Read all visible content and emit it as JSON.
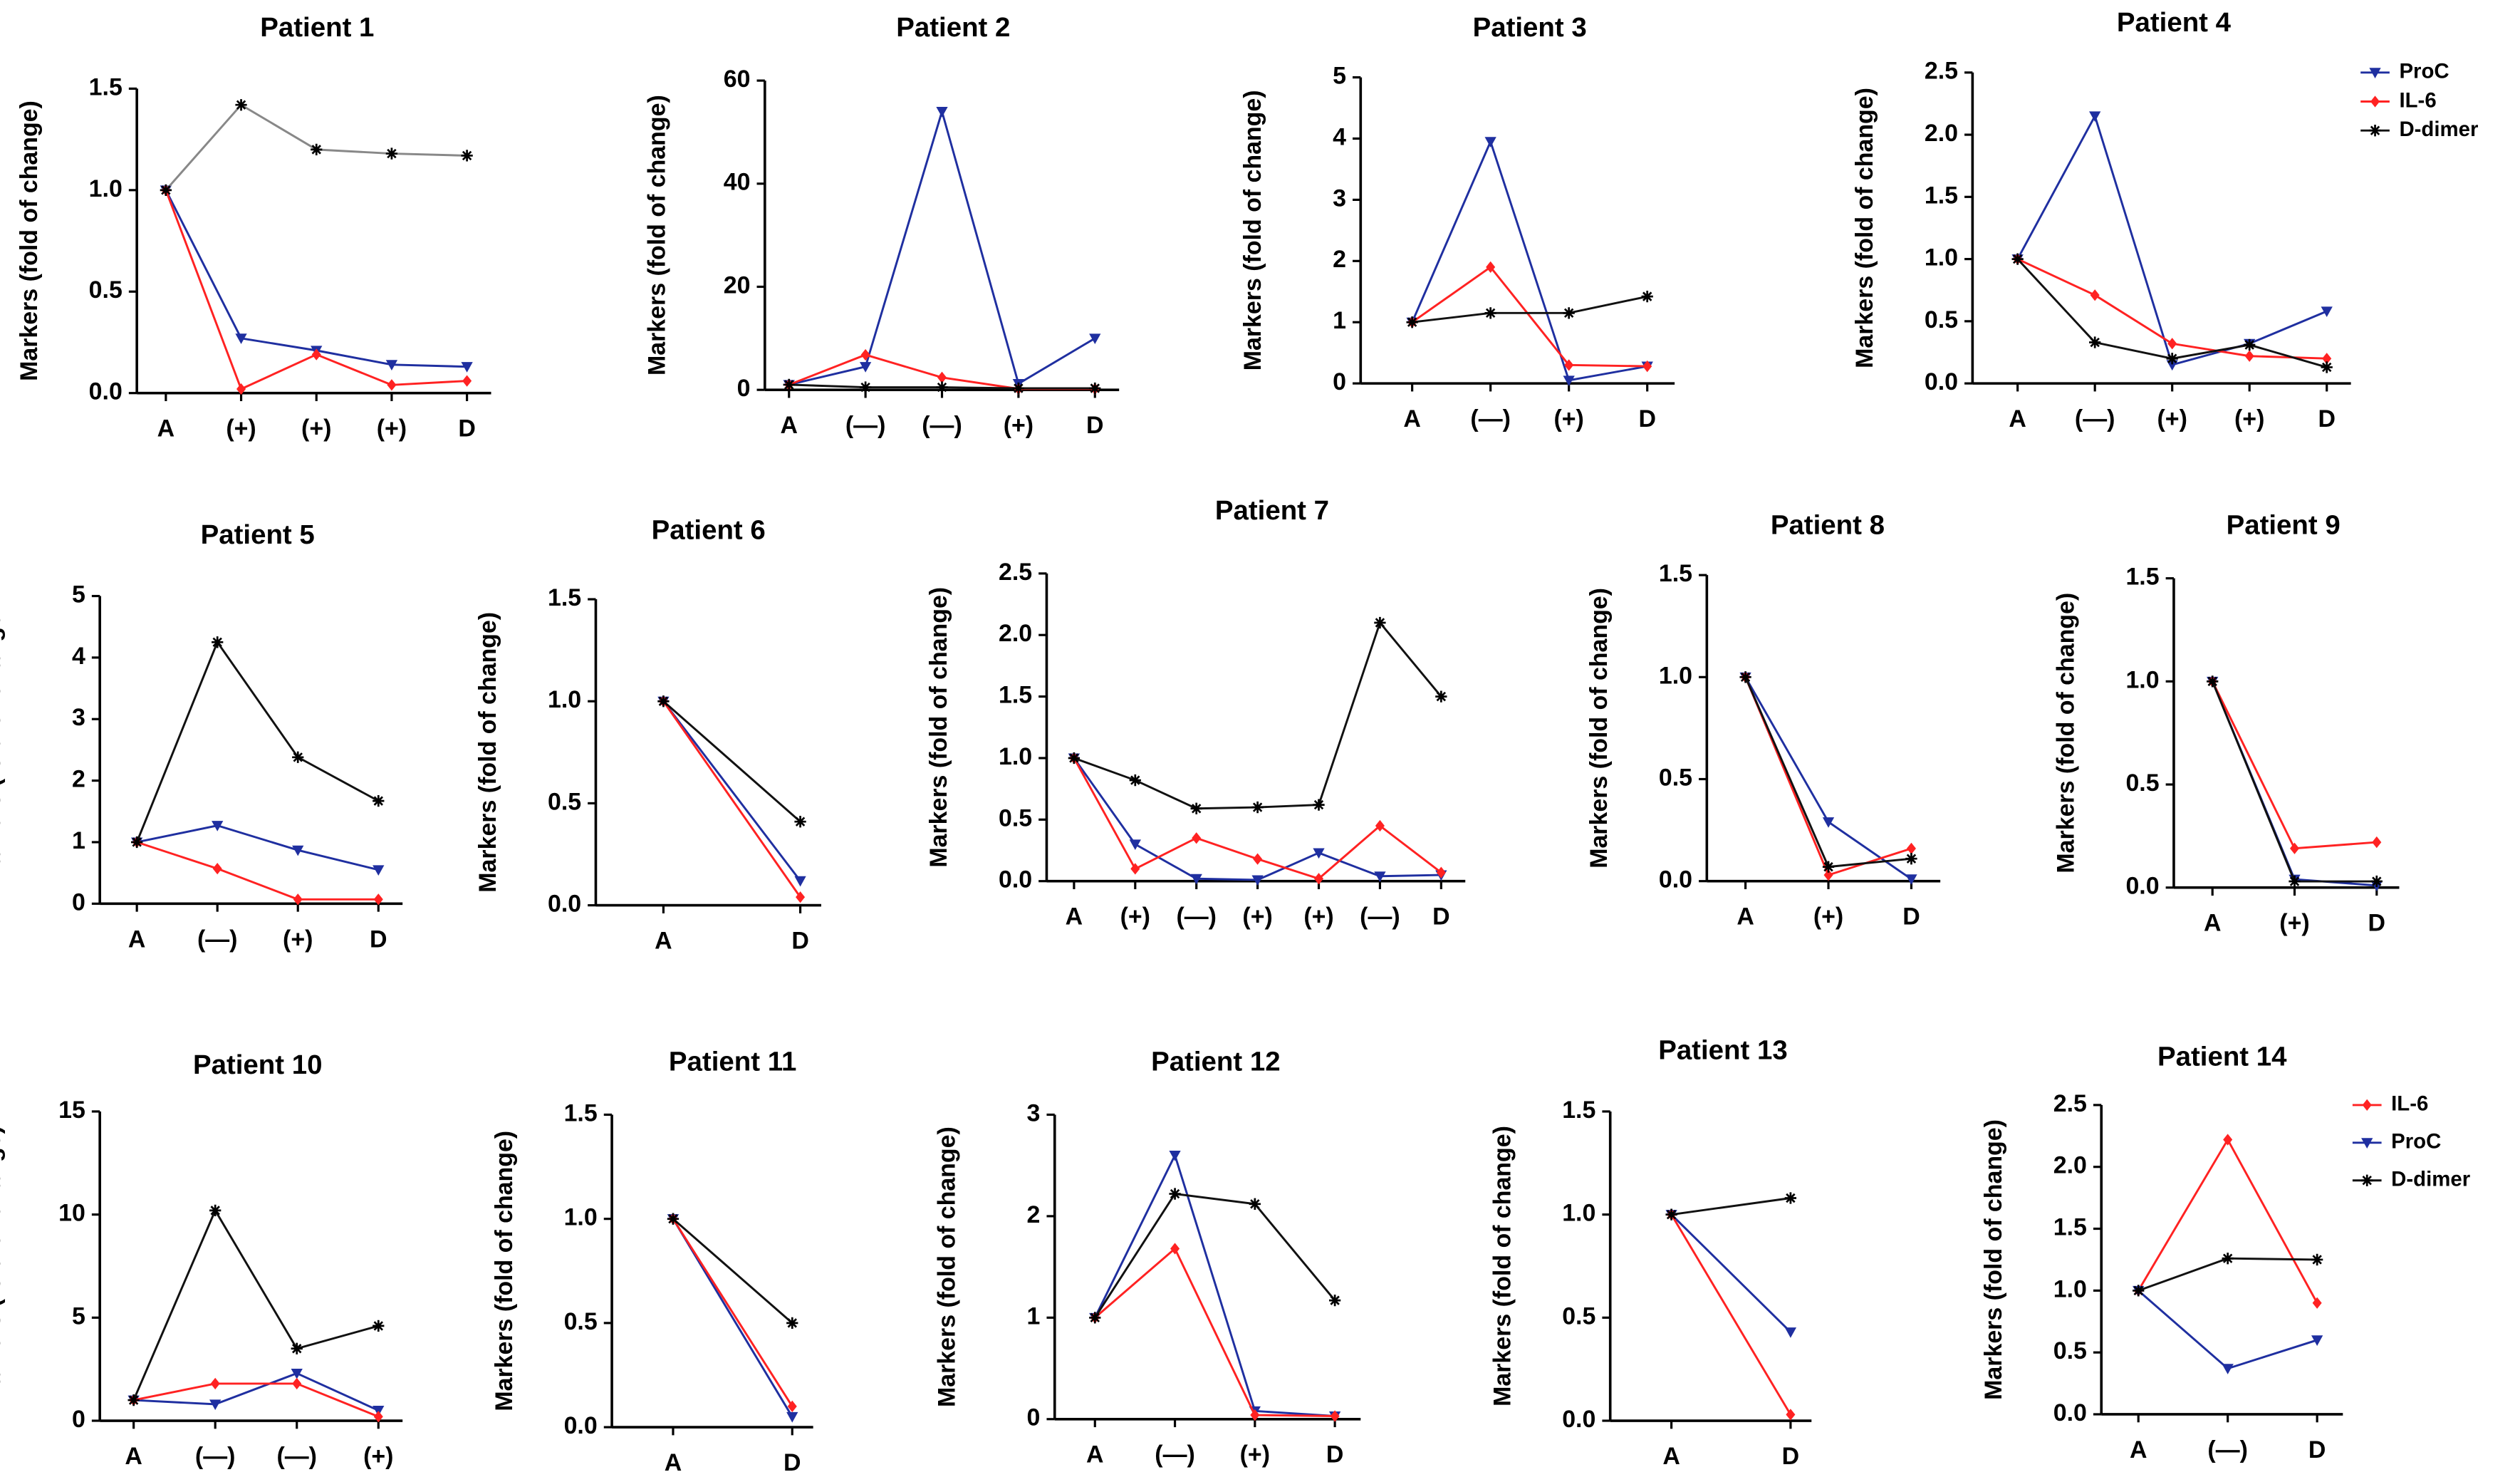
{
  "chart_data": [
    {
      "type": "line",
      "title": "Patient 1",
      "y_label": "Markers (fold of change)",
      "categories": [
        "A",
        "(+)",
        "(+)",
        "(+)",
        "D"
      ],
      "ylim": [
        0,
        1.5
      ],
      "yticks": [
        {
          "value": 0,
          "label": "0.0"
        },
        0.5,
        {
          "value": 1,
          "label": "1.0"
        },
        1.5
      ],
      "series": [
        {
          "name": "ProC",
          "color": "#1f2fa0",
          "marker": "triangle-down",
          "values": [
            1,
            0.27,
            0.21,
            0.14,
            0.13
          ]
        },
        {
          "name": "IL-6",
          "color": "#ff2222",
          "marker": "diamond",
          "values": [
            1,
            0.02,
            0.19,
            0.04,
            0.06
          ]
        },
        {
          "name": "D-dimer",
          "color": "#888888",
          "marker": "asterisk",
          "values": [
            1,
            1.42,
            1.2,
            1.18,
            1.17
          ]
        }
      ]
    },
    {
      "type": "line",
      "title": "Patient 2",
      "y_label": "Markers (fold of change)",
      "categories": [
        "A",
        "(—)",
        "(—)",
        "(+)",
        "D"
      ],
      "ylim": [
        0,
        60
      ],
      "yticks": [
        0,
        20,
        40,
        60
      ],
      "series": [
        {
          "name": "ProC",
          "color": "#1f2fa0",
          "marker": "triangle-down",
          "values": [
            1,
            4.5,
            54,
            1.2,
            10
          ]
        },
        {
          "name": "IL-6",
          "color": "#ff2222",
          "marker": "diamond",
          "values": [
            1,
            6.8,
            2.4,
            0.2,
            0.2
          ]
        },
        {
          "name": "D-dimer",
          "color": "#111111",
          "marker": "asterisk",
          "values": [
            1,
            0.5,
            0.5,
            0.3,
            0.3
          ]
        }
      ]
    },
    {
      "type": "line",
      "title": "Patient 3",
      "y_label": "Markers (fold of change)",
      "categories": [
        "A",
        "(—)",
        "(+)",
        "D"
      ],
      "ylim": [
        0,
        5
      ],
      "yticks": [
        0,
        1,
        2,
        3,
        4,
        5
      ],
      "series": [
        {
          "name": "ProC",
          "color": "#1f2fa0",
          "marker": "triangle-down",
          "values": [
            1,
            3.95,
            0.05,
            0.28
          ]
        },
        {
          "name": "IL-6",
          "color": "#ff2222",
          "marker": "diamond",
          "values": [
            1,
            1.9,
            0.3,
            0.28
          ]
        },
        {
          "name": "D-dimer",
          "color": "#111111",
          "marker": "asterisk",
          "values": [
            1,
            1.15,
            1.15,
            1.42
          ]
        }
      ]
    },
    {
      "type": "line",
      "title": "Patient 4",
      "y_label": "Markers (fold of change)",
      "categories": [
        "A",
        "(—)",
        "(+)",
        "(+)",
        "D"
      ],
      "ylim": [
        0,
        2.5
      ],
      "yticks": [
        {
          "value": 0,
          "label": "0.0"
        },
        0.5,
        {
          "value": 1,
          "label": "1.0"
        },
        1.5,
        {
          "value": 2,
          "label": "2.0"
        },
        2.5
      ],
      "legend": "right",
      "series": [
        {
          "name": "ProC",
          "color": "#1f2fa0",
          "marker": "triangle-down",
          "values": [
            1,
            2.15,
            0.15,
            0.32,
            0.58
          ]
        },
        {
          "name": "IL-6",
          "color": "#ff2222",
          "marker": "diamond",
          "values": [
            1,
            0.71,
            0.32,
            0.22,
            0.2
          ]
        },
        {
          "name": "D-dimer",
          "color": "#111111",
          "marker": "asterisk",
          "values": [
            1,
            0.33,
            0.2,
            0.31,
            0.13
          ]
        }
      ]
    },
    {
      "type": "line",
      "title": "Patient 5",
      "y_label": "Markers (fold of change",
      "categories": [
        "A",
        "(—)",
        "(+)",
        "D"
      ],
      "ylim": [
        0,
        5
      ],
      "yticks": [
        0,
        1,
        2,
        3,
        4,
        5
      ],
      "series": [
        {
          "name": "ProC",
          "color": "#1f2fa0",
          "marker": "triangle-down",
          "values": [
            1,
            1.27,
            0.87,
            0.55
          ]
        },
        {
          "name": "IL-6",
          "color": "#ff2222",
          "marker": "diamond",
          "values": [
            1,
            0.57,
            0.07,
            0.07
          ]
        },
        {
          "name": "D-dimer",
          "color": "#111111",
          "marker": "asterisk",
          "values": [
            1,
            4.25,
            2.38,
            1.67
          ]
        }
      ]
    },
    {
      "type": "line",
      "title": "Patient 6",
      "y_label": "Markers (fold of change)",
      "categories": [
        "A",
        "D"
      ],
      "ylim": [
        0,
        1.5
      ],
      "yticks": [
        {
          "value": 0,
          "label": "0.0"
        },
        0.5,
        {
          "value": 1,
          "label": "1.0"
        },
        1.5
      ],
      "series": [
        {
          "name": "ProC",
          "color": "#1f2fa0",
          "marker": "triangle-down",
          "values": [
            1,
            0.12
          ]
        },
        {
          "name": "IL-6",
          "color": "#ff2222",
          "marker": "diamond",
          "values": [
            1,
            0.04
          ]
        },
        {
          "name": "D-dimer",
          "color": "#111111",
          "marker": "asterisk",
          "values": [
            1,
            0.41
          ]
        }
      ]
    },
    {
      "type": "line",
      "title": "Patient 7",
      "y_label": "Markers (fold of change)",
      "categories": [
        "A",
        "(+)",
        "(—)",
        "(+)",
        "(+)",
        "(—)",
        "D"
      ],
      "ylim": [
        0,
        2.5
      ],
      "yticks": [
        {
          "value": 0,
          "label": "0.0"
        },
        0.5,
        {
          "value": 1,
          "label": "1.0"
        },
        1.5,
        {
          "value": 2,
          "label": "2.0"
        },
        2.5
      ],
      "series": [
        {
          "name": "ProC",
          "color": "#1f2fa0",
          "marker": "triangle-down",
          "values": [
            1,
            0.3,
            0.02,
            0.01,
            0.23,
            0.04,
            0.05
          ]
        },
        {
          "name": "IL-6",
          "color": "#ff2222",
          "marker": "diamond",
          "values": [
            1,
            0.1,
            0.35,
            0.18,
            0.02,
            0.45,
            0.07
          ]
        },
        {
          "name": "D-dimer",
          "color": "#111111",
          "marker": "asterisk",
          "values": [
            1,
            0.82,
            0.59,
            0.6,
            0.62,
            2.1,
            1.5
          ]
        }
      ]
    },
    {
      "type": "line",
      "title": "Patient 8",
      "y_label": "Markers (fold of change)",
      "categories": [
        "A",
        "(+)",
        "D"
      ],
      "ylim": [
        0,
        1.5
      ],
      "yticks": [
        {
          "value": 0,
          "label": "0.0"
        },
        0.5,
        {
          "value": 1,
          "label": "1.0"
        },
        1.5
      ],
      "series": [
        {
          "name": "ProC",
          "color": "#1f2fa0",
          "marker": "triangle-down",
          "values": [
            1,
            0.29,
            0.01
          ]
        },
        {
          "name": "IL-6",
          "color": "#ff2222",
          "marker": "diamond",
          "values": [
            1,
            0.03,
            0.16
          ]
        },
        {
          "name": "D-dimer",
          "color": "#111111",
          "marker": "asterisk",
          "values": [
            1,
            0.07,
            0.11
          ]
        }
      ]
    },
    {
      "type": "line",
      "title": "Patient 9",
      "y_label": "Markers (fold of change)",
      "categories": [
        "A",
        "(+)",
        "D"
      ],
      "ylim": [
        0,
        1.5
      ],
      "yticks": [
        {
          "value": 0,
          "label": "0.0"
        },
        0.5,
        {
          "value": 1,
          "label": "1.0"
        },
        1.5
      ],
      "series": [
        {
          "name": "ProC",
          "color": "#1f2fa0",
          "marker": "triangle-down",
          "values": [
            1,
            0.04,
            0.01
          ]
        },
        {
          "name": "IL-6",
          "color": "#ff2222",
          "marker": "diamond",
          "values": [
            1,
            0.19,
            0.22
          ]
        },
        {
          "name": "D-dimer",
          "color": "#111111",
          "marker": "asterisk",
          "values": [
            1,
            0.03,
            0.03
          ]
        }
      ]
    },
    {
      "type": "line",
      "title": "Patient 10",
      "y_label": "Markers (fold of change)",
      "categories": [
        "A",
        "(—)",
        "(—)",
        "(+)"
      ],
      "ylim": [
        0,
        15
      ],
      "yticks": [
        0,
        5,
        10,
        15
      ],
      "series": [
        {
          "name": "ProC",
          "color": "#1f2fa0",
          "marker": "triangle-down",
          "values": [
            1,
            0.8,
            2.3,
            0.5
          ]
        },
        {
          "name": "IL-6",
          "color": "#ff2222",
          "marker": "diamond",
          "values": [
            1,
            1.8,
            1.8,
            0.2
          ]
        },
        {
          "name": "D-dimer",
          "color": "#111111",
          "marker": "asterisk",
          "values": [
            1,
            10.2,
            3.5,
            4.6
          ]
        }
      ]
    },
    {
      "type": "line",
      "title": "Patient 11",
      "y_label": "Markers (fold of change)",
      "categories": [
        "A",
        "D"
      ],
      "ylim": [
        0,
        1.5
      ],
      "yticks": [
        {
          "value": 0,
          "label": "0.0"
        },
        0.5,
        {
          "value": 1,
          "label": "1.0"
        },
        1.5
      ],
      "series": [
        {
          "name": "ProC",
          "color": "#1f2fa0",
          "marker": "triangle-down",
          "values": [
            1,
            0.05
          ]
        },
        {
          "name": "IL-6",
          "color": "#ff2222",
          "marker": "diamond",
          "values": [
            1,
            0.1
          ]
        },
        {
          "name": "D-dimer",
          "color": "#111111",
          "marker": "asterisk",
          "values": [
            1,
            0.5
          ]
        }
      ]
    },
    {
      "type": "line",
      "title": "Patient 12",
      "y_label": "Markers (fold of change)",
      "categories": [
        "A",
        "(—)",
        "(+)",
        "D"
      ],
      "ylim": [
        0,
        3
      ],
      "yticks": [
        0,
        1,
        2,
        3
      ],
      "series": [
        {
          "name": "ProC",
          "color": "#1f2fa0",
          "marker": "triangle-down",
          "values": [
            1,
            2.6,
            0.08,
            0.03
          ]
        },
        {
          "name": "IL-6",
          "color": "#ff2222",
          "marker": "diamond",
          "values": [
            1,
            1.68,
            0.04,
            0.03
          ]
        },
        {
          "name": "D-dimer",
          "color": "#111111",
          "marker": "asterisk",
          "values": [
            1,
            2.22,
            2.12,
            1.17
          ]
        }
      ]
    },
    {
      "type": "line",
      "title": "Patient 13",
      "y_label": "Markers (fold of change)",
      "categories": [
        "A",
        "D"
      ],
      "ylim": [
        0,
        1.5
      ],
      "yticks": [
        {
          "value": 0,
          "label": "0.0"
        },
        0.5,
        {
          "value": 1,
          "label": "1.0"
        },
        1.5
      ],
      "series": [
        {
          "name": "ProC",
          "color": "#1f2fa0",
          "marker": "triangle-down",
          "values": [
            1,
            0.43
          ]
        },
        {
          "name": "IL-6",
          "color": "#ff2222",
          "marker": "diamond",
          "values": [
            1,
            0.03
          ]
        },
        {
          "name": "D-dimer",
          "color": "#111111",
          "marker": "asterisk",
          "values": [
            1,
            1.08
          ]
        }
      ]
    },
    {
      "type": "line",
      "title": "Patient 14",
      "y_label": "Markers (fold of change)",
      "categories": [
        "A",
        "(—)",
        "D"
      ],
      "ylim": [
        0,
        2.5
      ],
      "yticks": [
        {
          "value": 0,
          "label": "0.0"
        },
        0.5,
        {
          "value": 1,
          "label": "1.0"
        },
        1.5,
        {
          "value": 2,
          "label": "2.0"
        },
        2.5
      ],
      "legend": "right",
      "series": [
        {
          "name": "IL-6",
          "color": "#ff2222",
          "marker": "diamond",
          "values": [
            1,
            2.22,
            0.9
          ]
        },
        {
          "name": "ProC",
          "color": "#1f2fa0",
          "marker": "triangle-down",
          "values": [
            1,
            0.37,
            0.6
          ]
        },
        {
          "name": "D-dimer",
          "color": "#111111",
          "marker": "asterisk",
          "values": [
            1,
            1.26,
            1.25
          ]
        }
      ]
    }
  ]
}
